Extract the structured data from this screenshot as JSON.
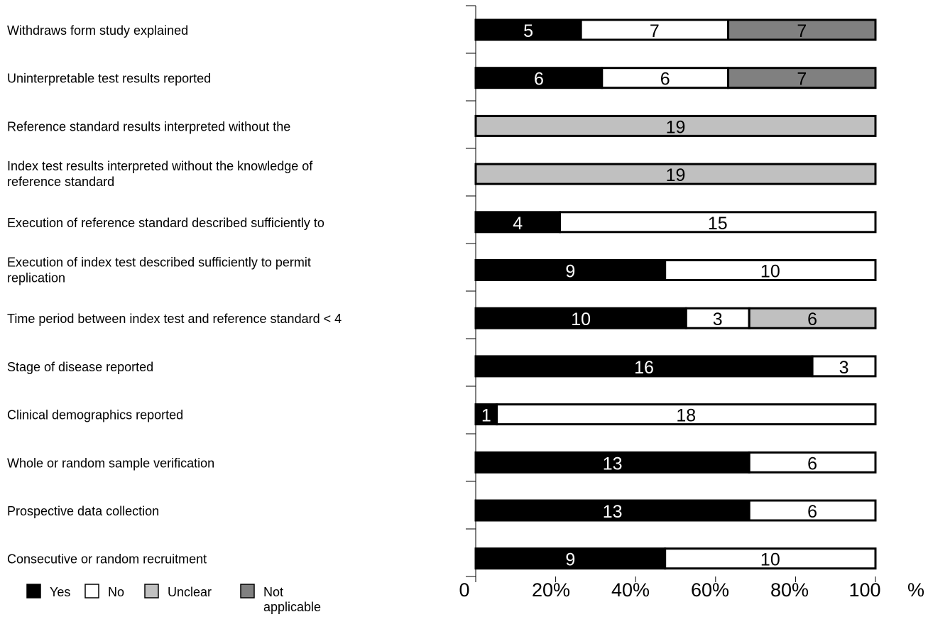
{
  "chart_data": {
    "type": "bar",
    "orientation": "horizontal",
    "stacked": true,
    "normalized": true,
    "categories": [
      "Withdraws form study explained",
      "Uninterpretable  test results reported",
      "Reference standard results interpreted without the",
      "Index test results interpreted without the knowledge of reference standard",
      "Execution of reference standard described sufficiently to",
      "Execution of index test described sufficiently to permit replication",
      "Time period between index test and reference standard < 4",
      "Stage of disease reported",
      "Clinical demographics reported",
      "Whole or random sample verification",
      "Prospective data collection",
      "Consecutive or random recruitment"
    ],
    "series": [
      {
        "name": "Yes",
        "color": "#000000",
        "label_color": "#ffffff",
        "values": [
          5,
          6,
          0,
          0,
          4,
          9,
          10,
          16,
          1,
          13,
          13,
          9
        ]
      },
      {
        "name": "No",
        "color": "#ffffff",
        "label_color": "#000000",
        "values": [
          7,
          6,
          0,
          0,
          15,
          10,
          3,
          3,
          18,
          6,
          6,
          10
        ]
      },
      {
        "name": "Unclear",
        "color": "#c0c0c0",
        "label_color": "#000000",
        "values": [
          0,
          0,
          19,
          19,
          0,
          0,
          6,
          0,
          0,
          0,
          0,
          0
        ]
      },
      {
        "name": "Not applicable",
        "color": "#808080",
        "label_color": "#000000",
        "values": [
          7,
          7,
          0,
          0,
          0,
          0,
          0,
          0,
          0,
          0,
          0,
          0
        ]
      }
    ],
    "x_ticks": [
      "0",
      "20%",
      "40%",
      "60%",
      "80%",
      "100",
      "%"
    ],
    "xlim": [
      0,
      100
    ],
    "grid": false,
    "legend_position": "bottom-left"
  }
}
